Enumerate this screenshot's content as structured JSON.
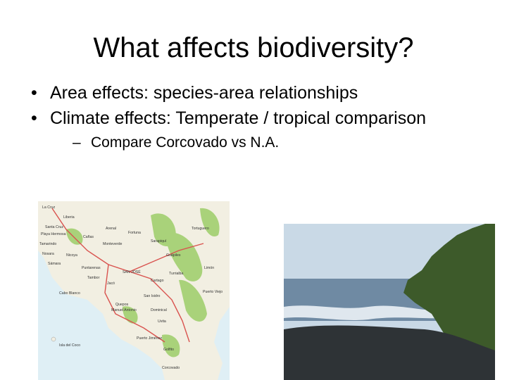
{
  "slide": {
    "title": "What affects biodiversity?",
    "bullets": [
      "Area effects: species-area relationships",
      "Climate effects: Temperate / tropical comparison"
    ],
    "sub_bullets": [
      "Compare Corcovado vs N.A."
    ],
    "bullet_char": "•",
    "dash_char": "–"
  },
  "map": {
    "labels": [
      "La Cruz",
      "Liberia",
      "Santa Cruz",
      "Nicoya",
      "Puntarenas",
      "Cañas",
      "Tamarindo",
      "Quepos",
      "Golfito",
      "Limón",
      "Tortuguero",
      "SAN JOSÉ",
      "Cartago",
      "Turrialba",
      "San Isidro",
      "Dominical",
      "Puerto Viejo",
      "Puerto Jiménez",
      "Isla del Coco",
      "Cabo Blanco",
      "Manuel Antonio",
      "Corcovado",
      "Uvita",
      "Jacó",
      "Tambor",
      "Sámara",
      "Arenal",
      "Monteverde",
      "Guápiles",
      "Sarapiquí",
      "Nosara",
      "Playa Hermosa",
      "Fortuna"
    ],
    "colors": {
      "sea": "#dfeff5",
      "land": "#f2efe2",
      "parks": "#a9d27a",
      "roads": "#d9534f"
    }
  },
  "photo": {
    "colors": {
      "sky": "#c9d9e6",
      "forest": "#3d5a2a",
      "sea": "#6f8aa3",
      "beach": "#2e3336",
      "foam": "#dfe7ee"
    }
  }
}
